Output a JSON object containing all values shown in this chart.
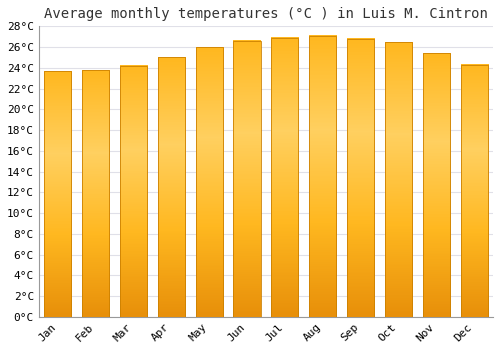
{
  "title": "Average monthly temperatures (°C ) in Luis M. Cintron",
  "months": [
    "Jan",
    "Feb",
    "Mar",
    "Apr",
    "May",
    "Jun",
    "Jul",
    "Aug",
    "Sep",
    "Oct",
    "Nov",
    "Dec"
  ],
  "values": [
    23.7,
    23.8,
    24.2,
    25.0,
    26.0,
    26.6,
    26.9,
    27.1,
    26.8,
    26.5,
    25.4,
    24.3
  ],
  "bar_color": "#FFA500",
  "bar_center_color": "#FFD060",
  "bar_edge_color": "#E08000",
  "background_color": "#FFFFFF",
  "plot_bg_color": "#FFFFFF",
  "grid_color": "#E0E0E8",
  "ylim": [
    0,
    28
  ],
  "ytick_step": 2,
  "title_fontsize": 10,
  "tick_fontsize": 8,
  "font_family": "monospace"
}
